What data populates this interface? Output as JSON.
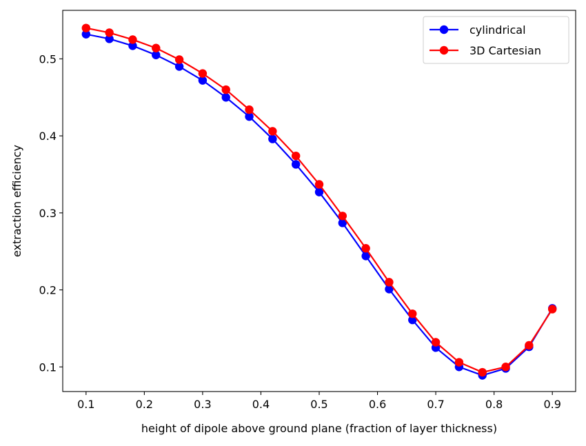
{
  "chart_data": {
    "type": "line",
    "title": "",
    "xlabel": "height of dipole above ground plane (fraction of layer thickness)",
    "ylabel": "extraction efficiency",
    "xlim": [
      0.06,
      0.94
    ],
    "ylim": [
      0.068,
      0.563
    ],
    "xticks": [
      0.1,
      0.2,
      0.3,
      0.4,
      0.5,
      0.6,
      0.7,
      0.8,
      0.9
    ],
    "xtick_labels": [
      "0.1",
      "0.2",
      "0.3",
      "0.4",
      "0.5",
      "0.6",
      "0.7",
      "0.8",
      "0.9"
    ],
    "yticks": [
      0.1,
      0.2,
      0.3,
      0.4,
      0.5
    ],
    "ytick_labels": [
      "0.1",
      "0.2",
      "0.3",
      "0.4",
      "0.5"
    ],
    "grid": false,
    "legend_position": "top-right",
    "x": [
      0.1,
      0.14,
      0.18,
      0.22,
      0.26,
      0.3,
      0.34,
      0.38,
      0.42,
      0.46,
      0.5,
      0.54,
      0.58,
      0.62,
      0.66,
      0.7,
      0.74,
      0.78,
      0.82,
      0.86,
      0.9
    ],
    "series": [
      {
        "name": "cylindrical",
        "color": "#0000ff",
        "marker": "circle",
        "values": [
          0.532,
          0.526,
          0.517,
          0.505,
          0.49,
          0.472,
          0.45,
          0.425,
          0.396,
          0.363,
          0.327,
          0.287,
          0.244,
          0.201,
          0.161,
          0.125,
          0.1,
          0.089,
          0.098,
          0.126,
          0.176
        ]
      },
      {
        "name": "3D Cartesian",
        "color": "#ff0000",
        "marker": "circle",
        "values": [
          0.54,
          0.534,
          0.525,
          0.514,
          0.499,
          0.481,
          0.46,
          0.434,
          0.406,
          0.374,
          0.337,
          0.296,
          0.254,
          0.21,
          0.169,
          0.132,
          0.106,
          0.093,
          0.1,
          0.128,
          0.175
        ]
      }
    ]
  }
}
